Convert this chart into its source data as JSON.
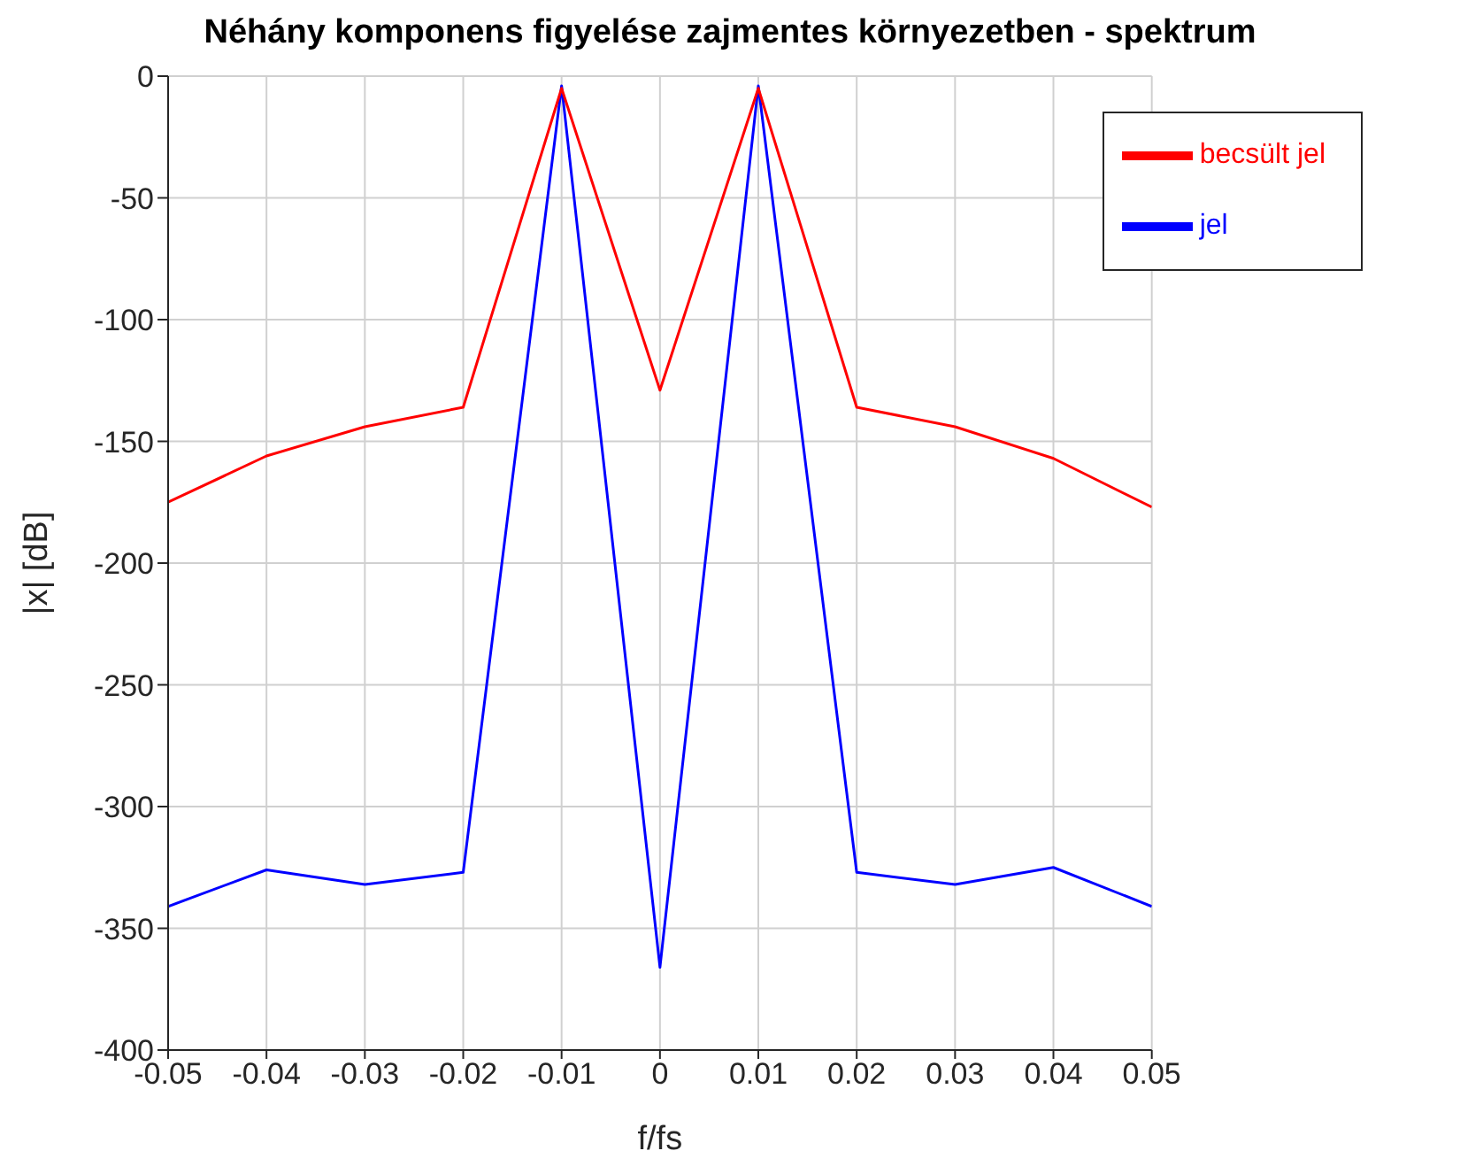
{
  "chart_data": {
    "type": "line",
    "title": "Néhány komponens figyelése zajmentes környezetben - spektrum",
    "xlabel": "f/fs",
    "ylabel": "|x| [dB]",
    "x": [
      -0.05,
      -0.04,
      -0.03,
      -0.02,
      -0.01,
      0,
      0.01,
      0.02,
      0.03,
      0.04,
      0.05
    ],
    "series": [
      {
        "name": "jel",
        "color": "#0000ff",
        "values": [
          -341,
          -326,
          -332,
          -327,
          -4,
          -366,
          -4,
          -327,
          -332,
          -325,
          -341
        ]
      },
      {
        "name": "becsült jel",
        "color": "#ff0000",
        "values": [
          -175,
          -156,
          -144,
          -136,
          -5,
          -129,
          -5,
          -136,
          -144,
          -157,
          -177
        ]
      }
    ],
    "xlim": [
      -0.05,
      0.05
    ],
    "xticks": [
      -0.05,
      -0.04,
      -0.03,
      -0.02,
      -0.01,
      0,
      0.01,
      0.02,
      0.03,
      0.04,
      0.05
    ],
    "ylim": [
      -400,
      0
    ],
    "yticks": [
      -400,
      -350,
      -300,
      -250,
      -200,
      -150,
      -100,
      -50,
      0
    ],
    "grid": true,
    "legend": "top right",
    "marker": "none",
    "line_style": "solid"
  }
}
